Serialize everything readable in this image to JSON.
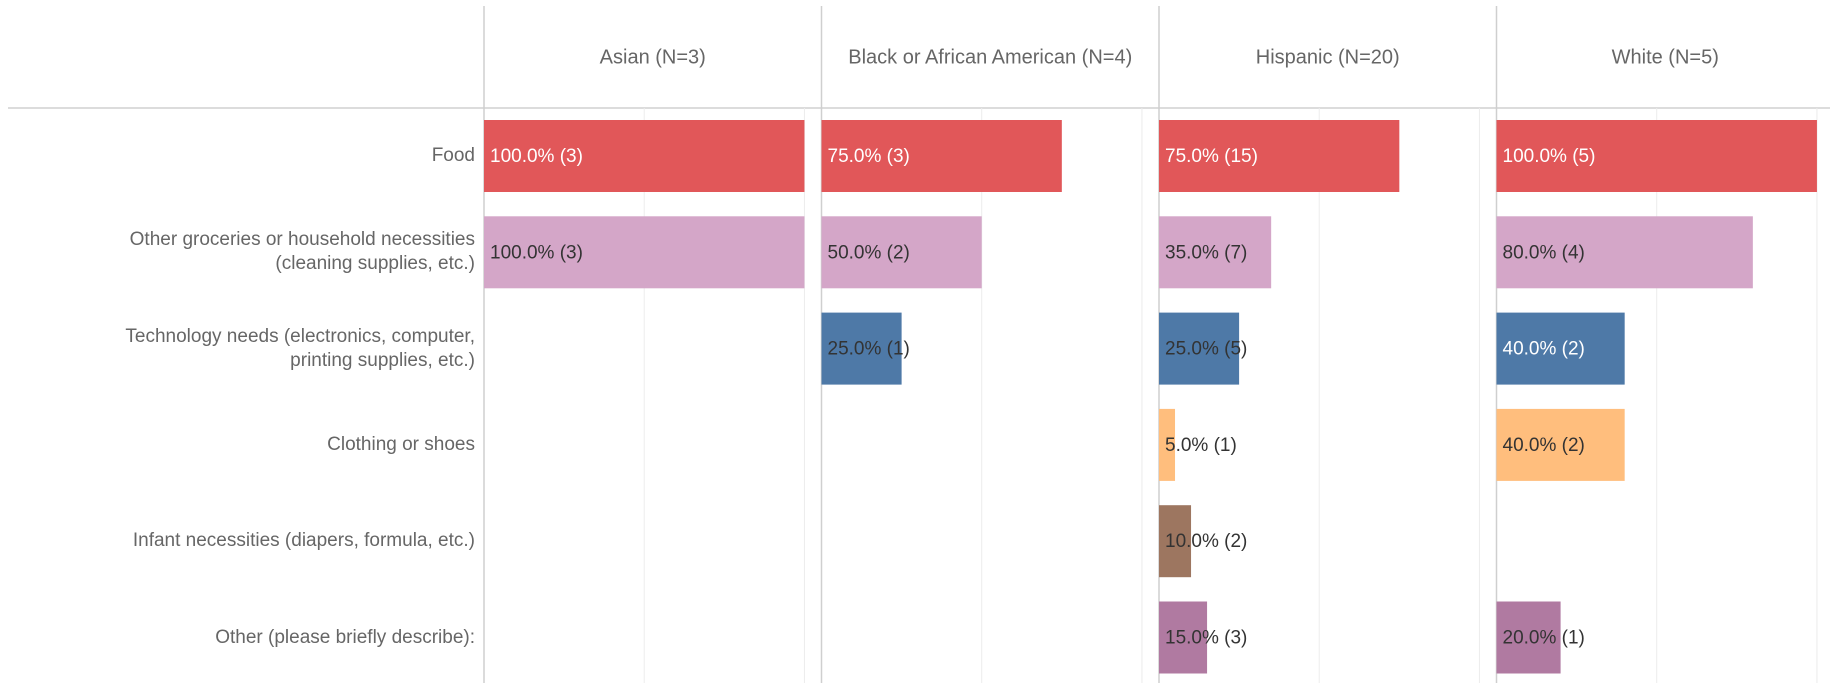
{
  "chart_data": {
    "type": "bar",
    "categories": [
      "Food",
      "Other groceries or household necessities (cleaning supplies, etc.)",
      "Technology needs (electronics, computer, printing supplies, etc.)",
      "Clothing or shoes",
      "Infant necessities (diapers, formula, etc.)",
      "Other (please briefly describe):"
    ],
    "colors": [
      "#e15759",
      "#d4a6c8",
      "#4e79a7",
      "#ffbe7d",
      "#9d7660",
      "#b07aa1"
    ],
    "xlim": [
      0,
      104.7
    ],
    "xticks": [
      0,
      50,
      100
    ],
    "grid": true,
    "panels": [
      {
        "title": "Asian (N=3)",
        "values": [
          100,
          100,
          null,
          null,
          null,
          null
        ],
        "value_labels": [
          "100.0% (3)",
          "100.0% (3)",
          null,
          null,
          null,
          null
        ]
      },
      {
        "title": "Black or African American (N=4)",
        "values": [
          75,
          50,
          25,
          null,
          null,
          null
        ],
        "value_labels": [
          "75.0% (3)",
          "50.0% (2)",
          "25.0% (1)",
          null,
          null,
          null
        ]
      },
      {
        "title": "Hispanic (N=20)",
        "values": [
          75,
          35,
          25,
          5,
          10,
          15
        ],
        "value_labels": [
          "75.0% (15)",
          "35.0% (7)",
          "25.0% (5)",
          "5.0% (1)",
          "10.0% (2)",
          "15.0% (3)"
        ]
      },
      {
        "title": "White (N=5)",
        "values": [
          100,
          80,
          40,
          40,
          null,
          20
        ],
        "value_labels": [
          "100.0% (5)",
          "80.0% (4)",
          "40.0% (2)",
          "40.0% (2)",
          null,
          "20.0% (1)"
        ]
      }
    ]
  }
}
